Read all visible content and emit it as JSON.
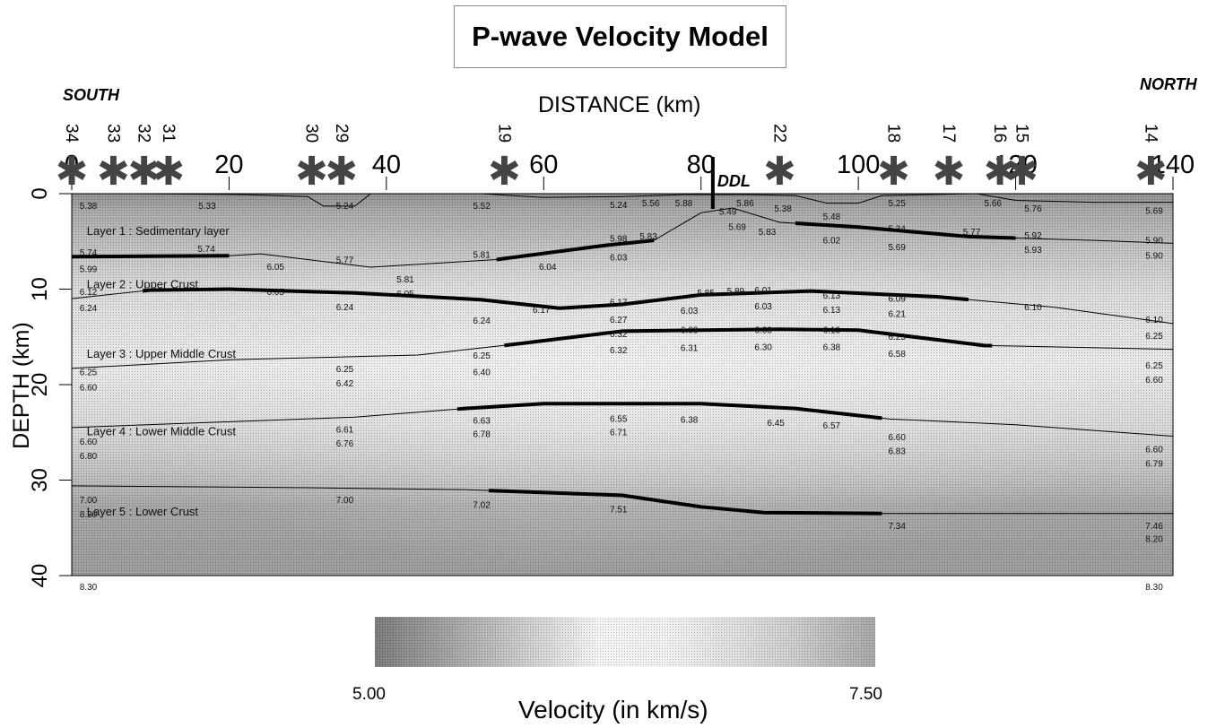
{
  "title": "P-wave Velocity Model",
  "labels": {
    "south": "SOUTH",
    "north": "NORTH",
    "xlabel": "DISTANCE (km)",
    "ylabel": "DEPTH (km)",
    "ddl": "DDL"
  },
  "colorbar": {
    "min_label": "5.00",
    "max_label": "7.50",
    "label": "Velocity (in km/s)",
    "range": [
      5.0,
      7.5
    ]
  },
  "chart_data": {
    "type": "velocity-section",
    "xlim": [
      0,
      140
    ],
    "ylim": [
      0,
      40
    ],
    "x_ticks": [
      0,
      20,
      40,
      60,
      80,
      100,
      120,
      140
    ],
    "y_ticks": [
      0,
      10,
      20,
      30,
      40
    ],
    "stations": [
      {
        "id": "34",
        "x": 0
      },
      {
        "id": "33",
        "x": 5.3
      },
      {
        "id": "32",
        "x": 9.2
      },
      {
        "id": "31",
        "x": 12.3
      },
      {
        "id": "30",
        "x": 30.5
      },
      {
        "id": "29",
        "x": 34.3
      },
      {
        "id": "19",
        "x": 55.0
      },
      {
        "id": "22",
        "x": 90.0
      },
      {
        "id": "18",
        "x": 104.5
      },
      {
        "id": "17",
        "x": 111.5
      },
      {
        "id": "16",
        "x": 118.0
      },
      {
        "id": "15",
        "x": 120.8
      },
      {
        "id": "14",
        "x": 137.2
      }
    ],
    "ddl_x": 81.5,
    "layers": [
      {
        "name": "Layer 1 : Sedimentary layer",
        "x": 1,
        "y": 4.3
      },
      {
        "name": "Layer 2 : Upper Crust",
        "x": 1,
        "y": 9.9
      },
      {
        "name": "Layer 3 : Upper Middle Crust",
        "x": 1,
        "y": 17.2
      },
      {
        "name": "Layer 4 : Lower Middle Crust",
        "x": 1,
        "y": 25.3
      },
      {
        "name": "Layer 5 : Lower Crust",
        "x": 1,
        "y": 33.7
      }
    ],
    "boundaries": [
      {
        "points": [
          [
            0,
            0
          ],
          [
            8,
            0
          ],
          [
            22,
            0.1
          ],
          [
            30,
            0.3
          ],
          [
            32,
            1.3
          ],
          [
            36,
            1.3
          ],
          [
            38,
            0
          ],
          [
            52,
            0
          ],
          [
            60,
            0.4
          ],
          [
            70,
            0.3
          ],
          [
            78,
            0.1
          ],
          [
            86,
            0.1
          ],
          [
            92,
            0.2
          ],
          [
            96,
            1.0
          ],
          [
            100,
            1.0
          ],
          [
            103,
            0.2
          ],
          [
            115,
            0
          ],
          [
            120,
            0.7
          ],
          [
            130,
            0.9
          ],
          [
            140,
            0.9
          ]
        ],
        "bold": []
      },
      {
        "points": [
          [
            0,
            6.6
          ],
          [
            20,
            6.5
          ],
          [
            24,
            6.3
          ],
          [
            38,
            7.7
          ],
          [
            54,
            6.9
          ],
          [
            68,
            5.4
          ],
          [
            74,
            4.9
          ],
          [
            80,
            2.0
          ],
          [
            84,
            1.5
          ],
          [
            90,
            3.0
          ],
          [
            100,
            3.5
          ],
          [
            114,
            4.5
          ],
          [
            130,
            4.9
          ],
          [
            140,
            5.2
          ]
        ],
        "bold": [
          [
            0,
            20
          ],
          [
            54,
            74
          ],
          [
            92,
            120
          ]
        ]
      },
      {
        "points": [
          [
            0,
            11.0
          ],
          [
            10,
            10.1
          ],
          [
            20,
            10.0
          ],
          [
            36,
            10.4
          ],
          [
            52,
            11.1
          ],
          [
            62,
            12.0
          ],
          [
            70,
            11.6
          ],
          [
            80,
            10.6
          ],
          [
            94,
            10.2
          ],
          [
            110,
            10.8
          ],
          [
            125,
            11.9
          ],
          [
            140,
            13.6
          ]
        ],
        "bold": [
          [
            9,
            114
          ]
        ]
      },
      {
        "points": [
          [
            0,
            18.3
          ],
          [
            20,
            17.4
          ],
          [
            44,
            16.9
          ],
          [
            56,
            15.8
          ],
          [
            70,
            14.4
          ],
          [
            90,
            14.2
          ],
          [
            100,
            14.3
          ],
          [
            116,
            15.9
          ],
          [
            140,
            16.3
          ]
        ],
        "bold": [
          [
            55,
            117
          ]
        ]
      },
      {
        "points": [
          [
            0,
            24.5
          ],
          [
            36,
            23.4
          ],
          [
            50,
            22.5
          ],
          [
            60,
            22.0
          ],
          [
            80,
            22.0
          ],
          [
            92,
            22.5
          ],
          [
            104,
            23.6
          ],
          [
            120,
            24.2
          ],
          [
            140,
            25.4
          ]
        ],
        "bold": [
          [
            49,
            103
          ]
        ]
      },
      {
        "points": [
          [
            0,
            30.6
          ],
          [
            30,
            30.8
          ],
          [
            50,
            31.0
          ],
          [
            70,
            31.6
          ],
          [
            80,
            32.8
          ],
          [
            88,
            33.4
          ],
          [
            103,
            33.5
          ],
          [
            140,
            33.5
          ]
        ],
        "bold": [
          [
            53,
            103
          ]
        ]
      }
    ],
    "velocity_labels": [
      {
        "t": "5.38",
        "x": 1,
        "y": 1.6
      },
      {
        "t": "5.33",
        "x": 16.1,
        "y": 1.6
      },
      {
        "t": "5.24",
        "x": 33.6,
        "y": 1.6
      },
      {
        "t": "5.52",
        "x": 51,
        "y": 1.6
      },
      {
        "t": "5.24",
        "x": 68.4,
        "y": 1.5
      },
      {
        "t": "5.56",
        "x": 72.5,
        "y": 1.3
      },
      {
        "t": "5.88",
        "x": 76.7,
        "y": 1.3
      },
      {
        "t": "5.49",
        "x": 82.3,
        "y": 2.2
      },
      {
        "t": "5.86",
        "x": 84.5,
        "y": 1.3
      },
      {
        "t": "5.38",
        "x": 89.3,
        "y": 1.9
      },
      {
        "t": "5.48",
        "x": 95.5,
        "y": 2.7
      },
      {
        "t": "5.25",
        "x": 103.8,
        "y": 1.3
      },
      {
        "t": "5.66",
        "x": 116,
        "y": 1.3
      },
      {
        "t": "5.76",
        "x": 121.1,
        "y": 1.9
      },
      {
        "t": "5.69",
        "x": 136.5,
        "y": 2.1
      },
      {
        "t": "5.98",
        "x": 68.4,
        "y": 5.0
      },
      {
        "t": "5.83",
        "x": 72.2,
        "y": 4.8
      },
      {
        "t": "5.69",
        "x": 83.5,
        "y": 3.8
      },
      {
        "t": "5.83",
        "x": 87.3,
        "y": 4.3
      },
      {
        "t": "6.02",
        "x": 95.5,
        "y": 5.2
      },
      {
        "t": "5.34",
        "x": 103.8,
        "y": 4.0
      },
      {
        "t": "5.69",
        "x": 103.8,
        "y": 5.9
      },
      {
        "t": "5.77",
        "x": 113.3,
        "y": 4.3
      },
      {
        "t": "5.92",
        "x": 121.1,
        "y": 4.7
      },
      {
        "t": "5.93",
        "x": 121.1,
        "y": 6.2
      },
      {
        "t": "5.90",
        "x": 136.5,
        "y": 5.2
      },
      {
        "t": "5.90",
        "x": 136.5,
        "y": 6.8
      },
      {
        "t": "5.74",
        "x": 1,
        "y": 6.5
      },
      {
        "t": "5.74",
        "x": 16,
        "y": 6.1
      },
      {
        "t": "5.99",
        "x": 1,
        "y": 8.2
      },
      {
        "t": "6.05",
        "x": 24.8,
        "y": 8.0
      },
      {
        "t": "5.77",
        "x": 33.6,
        "y": 7.3
      },
      {
        "t": "5.81",
        "x": 51,
        "y": 6.7
      },
      {
        "t": "6.04",
        "x": 59.4,
        "y": 8.0
      },
      {
        "t": "6.03",
        "x": 68.4,
        "y": 7.0
      },
      {
        "t": "5.81",
        "x": 41.3,
        "y": 9.3
      },
      {
        "t": "6.12",
        "x": 1,
        "y": 10.6
      },
      {
        "t": "6.24",
        "x": 1,
        "y": 12.3
      },
      {
        "t": "6.05",
        "x": 24.8,
        "y": 10.6
      },
      {
        "t": "6.24",
        "x": 33.6,
        "y": 12.2
      },
      {
        "t": "6.05",
        "x": 41.3,
        "y": 10.8
      },
      {
        "t": "6.24",
        "x": 51,
        "y": 13.6
      },
      {
        "t": "6.17",
        "x": 58.6,
        "y": 12.5
      },
      {
        "t": "6.17",
        "x": 68.4,
        "y": 11.7
      },
      {
        "t": "6.27",
        "x": 68.4,
        "y": 13.5
      },
      {
        "t": "5.85",
        "x": 79.5,
        "y": 10.7
      },
      {
        "t": "6.03",
        "x": 77.4,
        "y": 12.6
      },
      {
        "t": "5.89",
        "x": 83.3,
        "y": 10.5
      },
      {
        "t": "6.01",
        "x": 86.8,
        "y": 10.4
      },
      {
        "t": "6.03",
        "x": 86.8,
        "y": 12.1
      },
      {
        "t": "6.13",
        "x": 95.5,
        "y": 11.0
      },
      {
        "t": "6.13",
        "x": 95.5,
        "y": 12.5
      },
      {
        "t": "6.09",
        "x": 103.8,
        "y": 11.3
      },
      {
        "t": "6.21",
        "x": 103.8,
        "y": 12.9
      },
      {
        "t": "6.10",
        "x": 121.1,
        "y": 12.2
      },
      {
        "t": "6.10",
        "x": 136.5,
        "y": 13.5
      },
      {
        "t": "6.25",
        "x": 136.5,
        "y": 15.2
      },
      {
        "t": "6.32",
        "x": 68.4,
        "y": 15.0
      },
      {
        "t": "6.08",
        "x": 77.4,
        "y": 14.6
      },
      {
        "t": "6.08",
        "x": 86.8,
        "y": 14.6
      },
      {
        "t": "6.13",
        "x": 95.5,
        "y": 14.6
      },
      {
        "t": "6.32",
        "x": 68.4,
        "y": 16.7
      },
      {
        "t": "6.31",
        "x": 77.4,
        "y": 16.5
      },
      {
        "t": "6.30",
        "x": 86.8,
        "y": 16.4
      },
      {
        "t": "6.38",
        "x": 95.5,
        "y": 16.4
      },
      {
        "t": "6.23",
        "x": 103.8,
        "y": 15.3
      },
      {
        "t": "6.58",
        "x": 103.8,
        "y": 17.1
      },
      {
        "t": "6.25",
        "x": 51,
        "y": 17.3
      },
      {
        "t": "6.40",
        "x": 51,
        "y": 19.0
      },
      {
        "t": "6.25",
        "x": 33.6,
        "y": 18.7
      },
      {
        "t": "6.42",
        "x": 33.6,
        "y": 20.2
      },
      {
        "t": "6.25",
        "x": 1,
        "y": 19.0
      },
      {
        "t": "6.60",
        "x": 1,
        "y": 20.6
      },
      {
        "t": "6.25",
        "x": 136.5,
        "y": 18.3
      },
      {
        "t": "6.60",
        "x": 136.5,
        "y": 19.8
      },
      {
        "t": "6.61",
        "x": 33.6,
        "y": 25.0
      },
      {
        "t": "6.76",
        "x": 33.6,
        "y": 26.5
      },
      {
        "t": "6.63",
        "x": 51,
        "y": 24.1
      },
      {
        "t": "6.78",
        "x": 51,
        "y": 25.5
      },
      {
        "t": "6.55",
        "x": 68.4,
        "y": 23.9
      },
      {
        "t": "6.71",
        "x": 68.4,
        "y": 25.3
      },
      {
        "t": "6.38",
        "x": 77.4,
        "y": 24.0
      },
      {
        "t": "6.45",
        "x": 88.4,
        "y": 24.3
      },
      {
        "t": "6.57",
        "x": 95.5,
        "y": 24.6
      },
      {
        "t": "6.60",
        "x": 103.8,
        "y": 25.8
      },
      {
        "t": "6.83",
        "x": 103.8,
        "y": 27.3
      },
      {
        "t": "6.60",
        "x": 1,
        "y": 26.3
      },
      {
        "t": "6.80",
        "x": 1,
        "y": 27.8
      },
      {
        "t": "6.60",
        "x": 136.5,
        "y": 27.1
      },
      {
        "t": "6.79",
        "x": 136.5,
        "y": 28.6
      },
      {
        "t": "7.00",
        "x": 1,
        "y": 32.4
      },
      {
        "t": "8.20",
        "x": 1,
        "y": 33.9
      },
      {
        "t": "7.00",
        "x": 33.6,
        "y": 32.4
      },
      {
        "t": "7.02",
        "x": 51,
        "y": 32.9
      },
      {
        "t": "7.51",
        "x": 68.4,
        "y": 33.4
      },
      {
        "t": "7.34",
        "x": 103.8,
        "y": 35.1
      },
      {
        "t": "7.46",
        "x": 136.5,
        "y": 35.1
      },
      {
        "t": "8.20",
        "x": 136.5,
        "y": 36.5
      },
      {
        "t": "8.30",
        "x": 1,
        "y": 41.5
      },
      {
        "t": "8.30",
        "x": 136.5,
        "y": 41.5
      }
    ]
  }
}
